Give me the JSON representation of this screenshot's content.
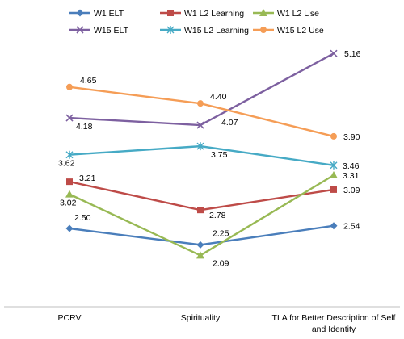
{
  "chart_data": {
    "type": "line",
    "categories": [
      "PCRV",
      "Spirituality",
      "TLA for Better Description of Self and Identity"
    ],
    "category_lines": [
      [
        "PCRV"
      ],
      [
        "Spirituality"
      ],
      [
        "TLA for Better Description of Self",
        "and Identity"
      ]
    ],
    "series": [
      {
        "name": "W1 ELT",
        "values": [
          2.5,
          2.25,
          2.54
        ],
        "labels": [
          "2.50",
          "2.25",
          "2.54"
        ],
        "color": "#4a7ebb",
        "marker": "diamond"
      },
      {
        "name": "W1 L2 Learning",
        "values": [
          3.21,
          2.78,
          3.09
        ],
        "labels": [
          "3.21",
          "2.78",
          "3.09"
        ],
        "color": "#be4b48",
        "marker": "square"
      },
      {
        "name": "W1 L2 Use",
        "values": [
          3.02,
          2.09,
          3.31
        ],
        "labels": [
          "3.02",
          "2.09",
          "3.31"
        ],
        "color": "#98b954",
        "marker": "triangle"
      },
      {
        "name": "W15 ELT",
        "values": [
          4.18,
          4.07,
          5.16
        ],
        "labels": [
          "4.18",
          "4.07",
          "5.16"
        ],
        "color": "#7d60a0",
        "marker": "x"
      },
      {
        "name": "W15 L2 Learning",
        "values": [
          3.62,
          3.75,
          3.46
        ],
        "labels": [
          "3.62",
          "3.75",
          "3.46"
        ],
        "color": "#46aac5",
        "marker": "star"
      },
      {
        "name": "W15 L2 Use",
        "values": [
          4.65,
          4.4,
          3.9
        ],
        "labels": [
          "4.65",
          "4.40",
          "3.90"
        ],
        "color": "#f59d56",
        "marker": "circle"
      }
    ],
    "legend_position": "top",
    "grid": false
  }
}
